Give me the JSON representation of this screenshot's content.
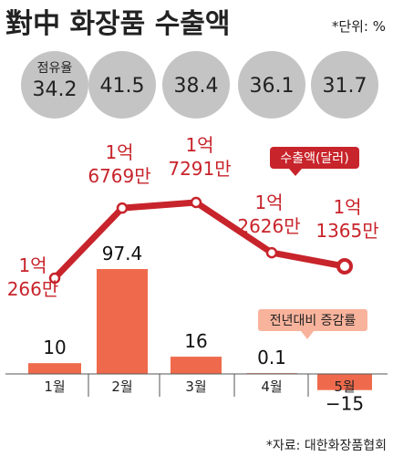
{
  "title": "對中 화장품 수출액",
  "unit_note": "*단위: %",
  "source": "*자료: 대한화장품협회",
  "share_label": "점유율",
  "sales_legend": "수출액(달러)",
  "growth_legend": "전년대비 증감률",
  "colors": {
    "circle": "#c4c4c4",
    "line": "#c8242b",
    "bar": "#ef6a4c",
    "growth_callout": "#f8b39c",
    "axis": "#555555"
  },
  "chart_data": {
    "type": "bar",
    "categories": [
      "1월",
      "2월",
      "3월",
      "4월",
      "5월"
    ],
    "share": {
      "name": "점유율",
      "values": [
        34.2,
        41.5,
        38.4,
        36.1,
        31.7
      ],
      "labels": [
        "34.2",
        "41.5",
        "38.4",
        "36.1",
        "31.7"
      ]
    },
    "series": [
      {
        "name": "전년대비 증감률",
        "type": "bar",
        "values": [
          10,
          97.4,
          16,
          0.1,
          -15
        ],
        "labels": [
          "10",
          "97.4",
          "16",
          "0.1",
          "−15"
        ]
      },
      {
        "name": "수출액(달러)",
        "type": "line",
        "values": [
          102660000,
          167690000,
          172910000,
          126260000,
          113650000
        ],
        "labels": [
          [
            "1억",
            "266만"
          ],
          [
            "1억",
            "6769만"
          ],
          [
            "1억",
            "7291만"
          ],
          [
            "1억",
            "2626만"
          ],
          [
            "1억",
            "1365만"
          ]
        ]
      }
    ],
    "title": "對中 화장품 수출액",
    "xlabel": "",
    "ylabel": ""
  }
}
